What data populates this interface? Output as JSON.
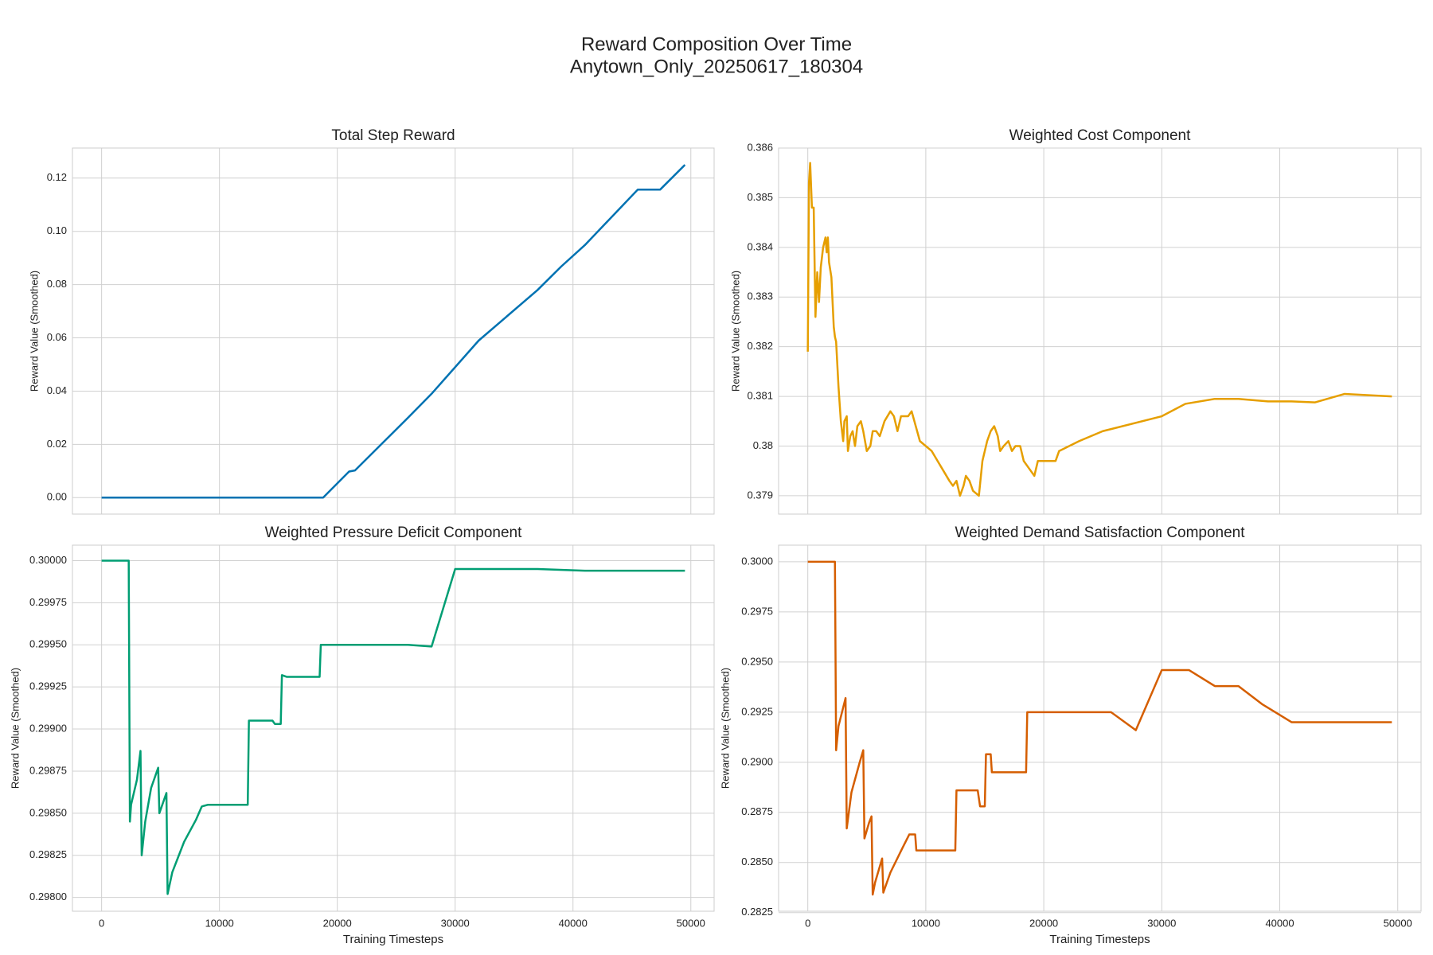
{
  "title": "Reward Composition Over Time",
  "subtitle": "Anytown_Only_20250617_180304",
  "chart_data": [
    {
      "type": "line",
      "title": "Total Step Reward",
      "ylabel": "Reward Value (Smoothed)",
      "color": "#0072B2",
      "grid": true,
      "xtick_labels": false,
      "x": [
        0,
        18800,
        21000,
        21500,
        26000,
        28000,
        32000,
        37000,
        39000,
        41000,
        45500,
        47400,
        49500
      ],
      "values": [
        0,
        0,
        0.0098,
        0.0102,
        0.03,
        0.039,
        0.059,
        0.078,
        0.0868,
        0.0948,
        0.1157,
        0.1157,
        0.125
      ],
      "xlim": [
        -2475,
        51975
      ],
      "ylim": [
        -0.0062,
        0.1313
      ],
      "xticks": [
        0,
        10000,
        20000,
        30000,
        40000,
        50000
      ],
      "yticks": [
        {
          "value": 0,
          "label": "0.00"
        },
        {
          "value": 0.02,
          "label": "0.02"
        },
        {
          "value": 0.04,
          "label": "0.04"
        },
        {
          "value": 0.06,
          "label": "0.06"
        },
        {
          "value": 0.08,
          "label": "0.08"
        },
        {
          "value": 0.1,
          "label": "0.10"
        },
        {
          "value": 0.12,
          "label": "0.12"
        }
      ]
    },
    {
      "type": "line",
      "title": "Weighted Cost Component",
      "ylabel": "Reward Value (Smoothed)",
      "color": "#E69F00",
      "grid": true,
      "xtick_labels": false,
      "x": [
        0,
        100,
        200,
        350,
        500,
        650,
        800,
        950,
        1100,
        1300,
        1500,
        1600,
        1700,
        1800,
        2000,
        2200,
        2300,
        2400,
        2600,
        2800,
        3000,
        3100,
        3300,
        3400,
        3600,
        3800,
        4000,
        4200,
        4500,
        4700,
        5000,
        5300,
        5500,
        5800,
        6100,
        6500,
        7000,
        7300,
        7600,
        7900,
        8500,
        8800,
        9500,
        10000,
        10500,
        11000,
        11500,
        12000,
        12300,
        12600,
        12900,
        13200,
        13400,
        13700,
        14000,
        14500,
        14800,
        15200,
        15500,
        15800,
        16100,
        16300,
        16600,
        17000,
        17300,
        17600,
        18000,
        18300,
        18600,
        18900,
        19200,
        19500,
        21000,
        21300,
        23000,
        25000,
        30000,
        32000,
        34500,
        36500,
        39000,
        41000,
        43000,
        45500,
        49500
      ],
      "values": [
        0.3819,
        0.3853,
        0.3857,
        0.3848,
        0.3848,
        0.3826,
        0.3835,
        0.3829,
        0.3836,
        0.384,
        0.3842,
        0.3839,
        0.3842,
        0.3837,
        0.3834,
        0.3824,
        0.3822,
        0.3821,
        0.3812,
        0.3805,
        0.3801,
        0.3805,
        0.3806,
        0.3799,
        0.3802,
        0.3803,
        0.38,
        0.3804,
        0.3805,
        0.3803,
        0.3799,
        0.38,
        0.3803,
        0.3803,
        0.3802,
        0.3805,
        0.3807,
        0.3806,
        0.3803,
        0.3806,
        0.3806,
        0.3807,
        0.3801,
        0.38,
        0.3799,
        0.3797,
        0.3795,
        0.3793,
        0.3792,
        0.3793,
        0.379,
        0.3792,
        0.3794,
        0.3793,
        0.3791,
        0.379,
        0.3797,
        0.3801,
        0.3803,
        0.3804,
        0.3802,
        0.3799,
        0.38,
        0.3801,
        0.3799,
        0.38,
        0.38,
        0.3797,
        0.3796,
        0.3795,
        0.3794,
        0.3797,
        0.3797,
        0.3799,
        0.3801,
        0.3803,
        0.3806,
        0.38085,
        0.38095,
        0.38095,
        0.3809,
        0.3809,
        0.38088,
        0.38105,
        0.381
      ],
      "xlim": [
        -2475,
        51975
      ],
      "ylim": [
        0.37863,
        0.386
      ],
      "xticks": [
        0,
        10000,
        20000,
        30000,
        40000,
        50000
      ],
      "yticks": [
        0.379,
        0.38,
        0.381,
        0.382,
        0.383,
        0.384,
        0.385,
        0.386
      ]
    },
    {
      "type": "line",
      "title": "Weighted Pressure Deficit Component",
      "ylabel": "Reward Value (Smoothed)",
      "xlabel": "Training Timesteps",
      "color": "#009E73",
      "grid": true,
      "xtick_labels": true,
      "x": [
        0,
        2300,
        2400,
        2500,
        3000,
        3300,
        3400,
        3700,
        4200,
        4800,
        4900,
        5500,
        5600,
        6000,
        6500,
        7000,
        8000,
        8500,
        9000,
        10000,
        12400,
        12500,
        14500,
        14700,
        15200,
        15300,
        15700,
        18500,
        18600,
        26000,
        28000,
        30000,
        37000,
        41000,
        49500
      ],
      "values": [
        0.3,
        0.3,
        0.29845,
        0.29855,
        0.2987,
        0.29887,
        0.29825,
        0.29845,
        0.29865,
        0.29877,
        0.2985,
        0.29862,
        0.29802,
        0.29815,
        0.29824,
        0.29833,
        0.29846,
        0.29854,
        0.29855,
        0.29855,
        0.29855,
        0.29905,
        0.29905,
        0.29903,
        0.29903,
        0.29932,
        0.29931,
        0.29931,
        0.2995,
        0.2995,
        0.29949,
        0.29995,
        0.29995,
        0.29994,
        0.29994
      ],
      "xlim": [
        -2475,
        51975
      ],
      "ylim": [
        0.297918,
        0.300092
      ],
      "xticks": [
        0,
        10000,
        20000,
        30000,
        40000,
        50000
      ],
      "yticks": [
        {
          "value": 0.298,
          "label": "0.29800"
        },
        {
          "value": 0.29825,
          "label": "0.29825"
        },
        {
          "value": 0.2985,
          "label": "0.29850"
        },
        {
          "value": 0.29875,
          "label": "0.29875"
        },
        {
          "value": 0.299,
          "label": "0.29900"
        },
        {
          "value": 0.29925,
          "label": "0.29925"
        },
        {
          "value": 0.2995,
          "label": "0.29950"
        },
        {
          "value": 0.29975,
          "label": "0.29975"
        },
        {
          "value": 0.3,
          "label": "0.30000"
        }
      ]
    },
    {
      "type": "line",
      "title": "Weighted Demand Satisfaction Component",
      "ylabel": "Reward Value (Smoothed)",
      "xlabel": "Training Timesteps",
      "color": "#D55E00",
      "grid": true,
      "xtick_labels": true,
      "x": [
        0,
        2300,
        2400,
        2600,
        3200,
        3300,
        3700,
        4400,
        4700,
        4800,
        5200,
        5400,
        5500,
        5700,
        6300,
        6400,
        7000,
        8000,
        8600,
        9100,
        9200,
        12500,
        12600,
        14400,
        14600,
        15000,
        15100,
        15500,
        15600,
        18500,
        18600,
        25700,
        27800,
        30000,
        32300,
        34500,
        36500,
        38500,
        41000,
        49500
      ],
      "values": [
        0.3,
        0.3,
        0.2906,
        0.2918,
        0.2932,
        0.2867,
        0.2885,
        0.29,
        0.2906,
        0.2862,
        0.287,
        0.2873,
        0.2834,
        0.284,
        0.2852,
        0.2835,
        0.2845,
        0.2857,
        0.2864,
        0.2864,
        0.2856,
        0.2856,
        0.2886,
        0.2886,
        0.2878,
        0.2878,
        0.2904,
        0.2904,
        0.2895,
        0.2895,
        0.2925,
        0.2925,
        0.2916,
        0.2946,
        0.2946,
        0.2938,
        0.2938,
        0.2929,
        0.292,
        0.292
      ],
      "xlim": [
        -2475,
        51975
      ],
      "ylim": [
        0.28257,
        0.30083
      ],
      "xticks": [
        0,
        10000,
        20000,
        30000,
        40000,
        50000
      ],
      "yticks": [
        0.2825,
        {
          "value": 0.285,
          "label": "0.2850"
        },
        0.2875,
        {
          "value": 0.29,
          "label": "0.2900"
        },
        0.2925,
        {
          "value": 0.295,
          "label": "0.2950"
        },
        0.2975,
        {
          "value": 0.3,
          "label": "0.3000"
        }
      ]
    }
  ]
}
